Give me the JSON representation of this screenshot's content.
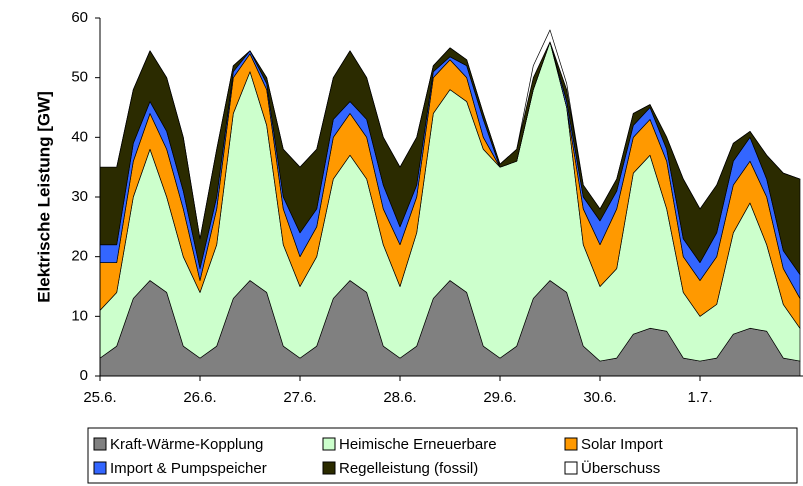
{
  "chart_data": {
    "type": "stacked_area",
    "y_label": "Elektrische Leistung [GW]",
    "x": [
      0,
      0.167,
      0.333,
      0.5,
      0.667,
      0.833,
      1,
      1.167,
      1.333,
      1.5,
      1.667,
      1.833,
      2,
      2.167,
      2.333,
      2.5,
      2.667,
      2.833,
      3,
      3.167,
      3.333,
      3.5,
      3.667,
      3.833,
      4,
      4.167,
      4.333,
      4.5,
      4.667,
      4.833,
      5,
      5.167,
      5.333,
      5.5,
      5.667,
      5.833,
      6,
      6.167,
      6.333,
      6.5,
      6.667,
      6.833,
      7
    ],
    "xlim": [
      0,
      7.03
    ],
    "xticks": [
      {
        "value": 0,
        "label": "25.6."
      },
      {
        "value": 1,
        "label": "26.6."
      },
      {
        "value": 2,
        "label": "27.6."
      },
      {
        "value": 3,
        "label": "28.6."
      },
      {
        "value": 4,
        "label": "29.6."
      },
      {
        "value": 5,
        "label": "30.6."
      },
      {
        "value": 6,
        "label": "1.7."
      }
    ],
    "ylim": [
      0,
      60
    ],
    "yticks": [
      0,
      10,
      20,
      30,
      40,
      50,
      60
    ],
    "series": [
      {
        "name": "Kraft-Wärme-Kopplung",
        "color": "#808080",
        "values": [
          3,
          5,
          13,
          16,
          14,
          5,
          3,
          5,
          13,
          16,
          14,
          5,
          3,
          5,
          13,
          16,
          14,
          5,
          3,
          5,
          13,
          16,
          14,
          5,
          3,
          5,
          13,
          16,
          14,
          5,
          2.5,
          3,
          7,
          8,
          7.5,
          3,
          2.5,
          3,
          7,
          8,
          7.5,
          3,
          2.5
        ]
      },
      {
        "name": "Heimische Erneuerbare",
        "color": "#ccffcc",
        "values": [
          8,
          9,
          17,
          22,
          16,
          15,
          11,
          17,
          31,
          35,
          28,
          17,
          12,
          15,
          20,
          21,
          19,
          17,
          12,
          19,
          31,
          32,
          32,
          33,
          32,
          31,
          35,
          40,
          31,
          17,
          12.5,
          15,
          27,
          29,
          20.5,
          11,
          7.5,
          9,
          17,
          21,
          14.5,
          9,
          5.5
        ]
      },
      {
        "name": "Solar Import",
        "color": "#ff9900",
        "values": [
          8,
          5,
          6,
          6,
          8,
          8,
          2,
          6,
          6,
          3,
          6,
          6,
          5,
          5,
          7,
          7,
          7,
          6,
          7,
          6,
          6,
          5,
          4,
          2,
          0,
          0,
          0,
          0,
          0,
          6,
          7,
          10,
          6,
          6,
          8,
          6,
          6,
          8,
          8,
          7,
          8,
          6,
          5
        ]
      },
      {
        "name": "Import & Pumpspeicher",
        "color": "#3366ff",
        "values": [
          3,
          3,
          3,
          2,
          3,
          3,
          2,
          2,
          1,
          0.5,
          1,
          2,
          4,
          3,
          3,
          2,
          3,
          4,
          3,
          2,
          1,
          0.5,
          2,
          3,
          0,
          0,
          0,
          0,
          1,
          2,
          4,
          3,
          2,
          2,
          2,
          3,
          3,
          4,
          4,
          4,
          3,
          3,
          4
        ]
      },
      {
        "name": "Regelleistung (fossil)",
        "color": "#2b2b00",
        "values": [
          13,
          13,
          9,
          8.5,
          9,
          9,
          5,
          8,
          1,
          0,
          1,
          8,
          11,
          10,
          7,
          8.5,
          7,
          8,
          10,
          8,
          1,
          1.5,
          1,
          1,
          0.5,
          2,
          2,
          0,
          2,
          2,
          2,
          2,
          2,
          0.5,
          2,
          10,
          9,
          8,
          3,
          1,
          4,
          13,
          16
        ]
      },
      {
        "name": "Überschuss",
        "color": "#ffffff",
        "values": [
          0,
          0,
          0,
          0,
          0,
          0,
          0,
          0,
          0,
          0,
          0,
          0,
          0,
          0,
          0,
          0,
          0,
          0,
          0,
          0,
          0,
          0,
          0,
          0,
          0,
          0,
          2,
          2,
          1,
          0,
          0,
          0,
          0,
          0,
          0,
          0,
          0,
          0,
          0,
          0,
          0,
          0,
          0
        ]
      }
    ]
  }
}
